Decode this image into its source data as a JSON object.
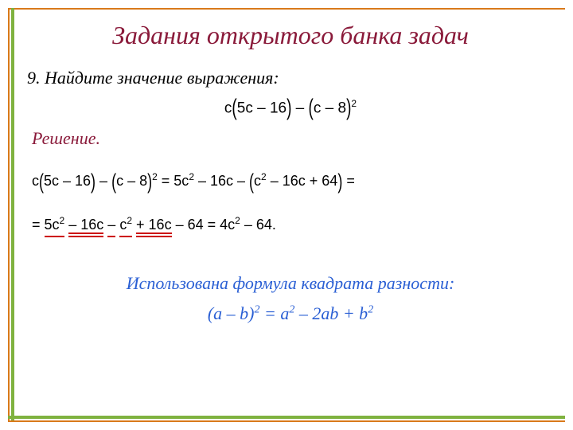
{
  "colors": {
    "title": "#8a1a3a",
    "solution_label": "#8a1a3a",
    "note": "#2a5fd4",
    "underline": "#c00",
    "border_outer": "#d97a1a",
    "border_inner": "#7fb23f",
    "text": "#000000",
    "background": "#ffffff"
  },
  "typography": {
    "title_fontsize": 32,
    "body_fontsize": 22,
    "math_fontsize": 18,
    "body_style": "italic",
    "math_family": "Arial"
  },
  "title": "Задания открытого банка задач",
  "problem": {
    "number": "9.",
    "text": "Найдите значение выражения:"
  },
  "expression": {
    "parts": {
      "p1": "c",
      "p2": "(",
      "p3": "5c – 16",
      "p4": ")",
      "p5": " – ",
      "p6": "(",
      "p7": "c – 8",
      "p8": ")",
      "p9": "2"
    }
  },
  "solution_label": "Решение.",
  "step1": {
    "a1": "c",
    "a2": "(",
    "a3": "5c – 16",
    "a4": ")",
    "a5": " – ",
    "a6": "(",
    "a7": "c – 8",
    "a8": ")",
    "a9": "2",
    "a10": " = 5c",
    "a11": "2",
    "a12": " – 16c – ",
    "a13": "(",
    "a14": "c",
    "a15": "2",
    "a16": " – 16c + 64",
    "a17": ")",
    "a18": " ="
  },
  "step2": {
    "b1": "= ",
    "b2": "5c",
    "b2s": "2",
    "b3": " ",
    "b4": "– 16c",
    "b5": " ",
    "b6": "–",
    "b7": " ",
    "b8": "c",
    "b8s": "2",
    "b9": " ",
    "b10": "+ 16c",
    "b11": " – 64 = 4c",
    "b12": "2",
    "b13": " – 64."
  },
  "note": "Использована формула квадрата разности:",
  "formula": {
    "f1": "(a – b)",
    "f2": "2",
    "f3": " = a",
    "f4": "2",
    "f5": " – 2ab + b",
    "f6": "2"
  }
}
